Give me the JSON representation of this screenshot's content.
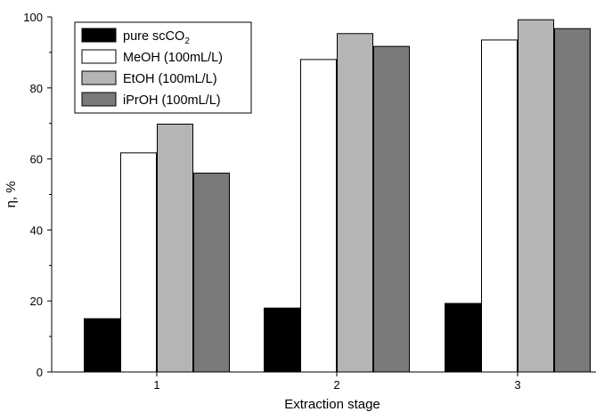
{
  "chart_data": {
    "type": "bar",
    "xlabel": "Extraction stage",
    "ylabel": "η, %",
    "ylim": [
      0,
      100
    ],
    "yticks": [
      0,
      20,
      40,
      60,
      80,
      100
    ],
    "categories": [
      "1",
      "2",
      "3"
    ],
    "series": [
      {
        "name": "pure scCO2",
        "legend_main": "pure scCO",
        "legend_sub": "2",
        "color": "#000000",
        "values": [
          15,
          18,
          19.3
        ]
      },
      {
        "name": "MeOH (100mL/L)",
        "color": "#ffffff",
        "values": [
          61.7,
          88,
          93.5
        ]
      },
      {
        "name": "EtOH (100mL/L)",
        "color": "#b5b5b5",
        "values": [
          69.8,
          95.3,
          99.2
        ]
      },
      {
        "name": "iPrOH (100mL/L)",
        "color": "#7a7a7a",
        "values": [
          56,
          91.7,
          96.7
        ]
      }
    ],
    "grid": false,
    "legend_position": "top-left"
  }
}
